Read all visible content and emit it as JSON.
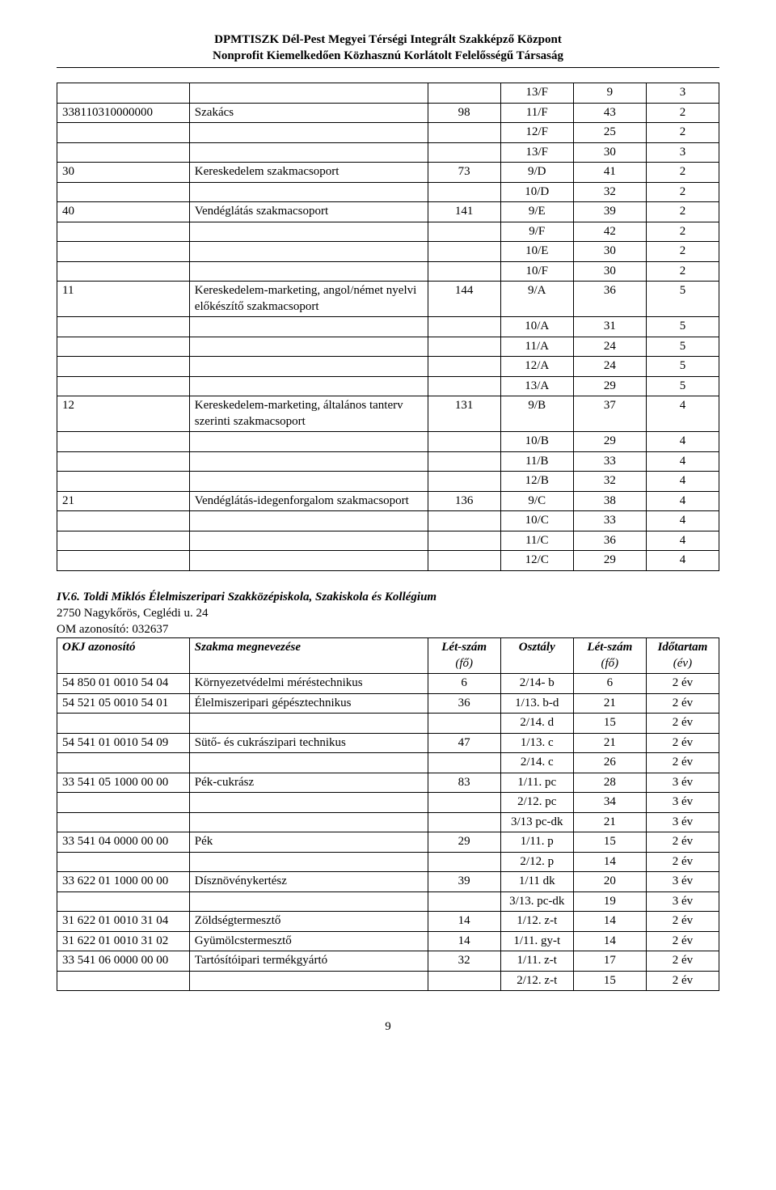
{
  "header": {
    "line1": "DPMTISZK Dél-Pest Megyei Térségi Integrált Szakképző Központ",
    "line2": "Nonprofit Kiemelkedően Közhasznú Korlátolt Felelősségű Társaság"
  },
  "table1": {
    "columns": [
      "code",
      "name",
      "n1",
      "cls",
      "n2",
      "dur"
    ],
    "rows": [
      [
        "",
        "",
        "",
        "13/F",
        "9",
        "3"
      ],
      [
        "338110310000000",
        "Szakács",
        "98",
        "11/F",
        "43",
        "2"
      ],
      [
        "",
        "",
        "",
        "12/F",
        "25",
        "2"
      ],
      [
        "",
        "",
        "",
        "13/F",
        "30",
        "3"
      ],
      [
        "30",
        "Kereskedelem szakmacsoport",
        "73",
        "9/D",
        "41",
        "2"
      ],
      [
        "",
        "",
        "",
        "10/D",
        "32",
        "2"
      ],
      [
        "40",
        "Vendéglátás szakmacsoport",
        "141",
        "9/E",
        "39",
        "2"
      ],
      [
        "",
        "",
        "",
        "9/F",
        "42",
        "2"
      ],
      [
        "",
        "",
        "",
        "10/E",
        "30",
        "2"
      ],
      [
        "",
        "",
        "",
        "10/F",
        "30",
        "2"
      ],
      [
        "11",
        "Kereskedelem-marketing, angol/német nyelvi előkészítő szakmacsoport",
        "144",
        "9/A",
        "36",
        "5"
      ],
      [
        "",
        "",
        "",
        "10/A",
        "31",
        "5"
      ],
      [
        "",
        "",
        "",
        "11/A",
        "24",
        "5"
      ],
      [
        "",
        "",
        "",
        "12/A",
        "24",
        "5"
      ],
      [
        "",
        "",
        "",
        "13/A",
        "29",
        "5"
      ],
      [
        "12",
        "Kereskedelem-marketing, általános tanterv szerinti szakmacsoport",
        "131",
        "9/B",
        "37",
        "4"
      ],
      [
        "",
        "",
        "",
        "10/B",
        "29",
        "4"
      ],
      [
        "",
        "",
        "",
        "11/B",
        "33",
        "4"
      ],
      [
        "",
        "",
        "",
        "12/B",
        "32",
        "4"
      ],
      [
        "21",
        "Vendéglátás-idegenforgalom szakmacsoport",
        "136",
        "9/C",
        "38",
        "4"
      ],
      [
        "",
        "",
        "",
        "10/C",
        "33",
        "4"
      ],
      [
        "",
        "",
        "",
        "11/C",
        "36",
        "4"
      ],
      [
        "",
        "",
        "",
        "12/C",
        "29",
        "4"
      ]
    ]
  },
  "section": {
    "title_bold": "IV.6. Toldi Miklós Élelmiszeripari Szakközépiskola, Szakiskola és Kollégium",
    "addr": "2750 Nagykőrös, Ceglédi u. 24",
    "om": "OM azonosító: 032637"
  },
  "table2": {
    "head": {
      "c1": "OKJ azonosító",
      "c2": "Szakma megnevezése",
      "c3a": "Lét-szám",
      "c3b": "(fő)",
      "c4": "Osztály",
      "c5a": "Lét-szám",
      "c5b": "(fő)",
      "c6a": "Időtartam",
      "c6b": "(év)"
    },
    "rows": [
      [
        "54 850 01 0010 54 04",
        "Környezetvédelmi méréstechnikus",
        "6",
        "2/14- b",
        "6",
        "2 év"
      ],
      [
        "54 521 05 0010 54 01",
        "Élelmiszeripari gépésztechnikus",
        "36",
        "1/13. b-d",
        "21",
        "2 év"
      ],
      [
        "",
        "",
        "",
        "2/14. d",
        "15",
        "2 év"
      ],
      [
        "54 541 01 0010 54 09",
        "Sütő- és cukrászipari technikus",
        "47",
        "1/13. c",
        "21",
        "2 év"
      ],
      [
        "",
        "",
        "",
        "2/14. c",
        "26",
        "2 év"
      ],
      [
        "33 541 05 1000 00 00",
        "Pék-cukrász",
        "83",
        "1/11. pc",
        "28",
        "3 év"
      ],
      [
        "",
        "",
        "",
        "2/12. pc",
        "34",
        "3 év"
      ],
      [
        "",
        "",
        "",
        "3/13 pc-dk",
        "21",
        "3 év"
      ],
      [
        "33 541 04 0000 00 00",
        "Pék",
        "29",
        "1/11. p",
        "15",
        "2 év"
      ],
      [
        "",
        "",
        "",
        "2/12. p",
        "14",
        "2 év"
      ],
      [
        "33 622 01 1000 00 00",
        "Dísznövénykertész",
        "39",
        "1/11 dk",
        "20",
        "3 év"
      ],
      [
        "",
        "",
        "",
        "3/13. pc-dk",
        "19",
        "3 év"
      ],
      [
        "31 622 01 0010 31 04",
        "Zöldségtermesztő",
        "14",
        "1/12. z-t",
        "14",
        "2 év"
      ],
      [
        "31 622 01 0010 31 02",
        "Gyümölcstermesztő",
        "14",
        "1/11. gy-t",
        "14",
        "2 év"
      ],
      [
        "33 541 06 0000 00 00",
        "Tartósítóipari termékgyártó",
        "32",
        "1/11. z-t",
        "17",
        "2 év"
      ],
      [
        "",
        "",
        "",
        "2/12. z-t",
        "15",
        "2 év"
      ]
    ]
  },
  "footer": {
    "page": "9"
  },
  "style": {
    "font_family": "Times New Roman",
    "font_size_pt": 11,
    "border_color": "#000000",
    "background_color": "#ffffff",
    "text_color": "#000000"
  }
}
